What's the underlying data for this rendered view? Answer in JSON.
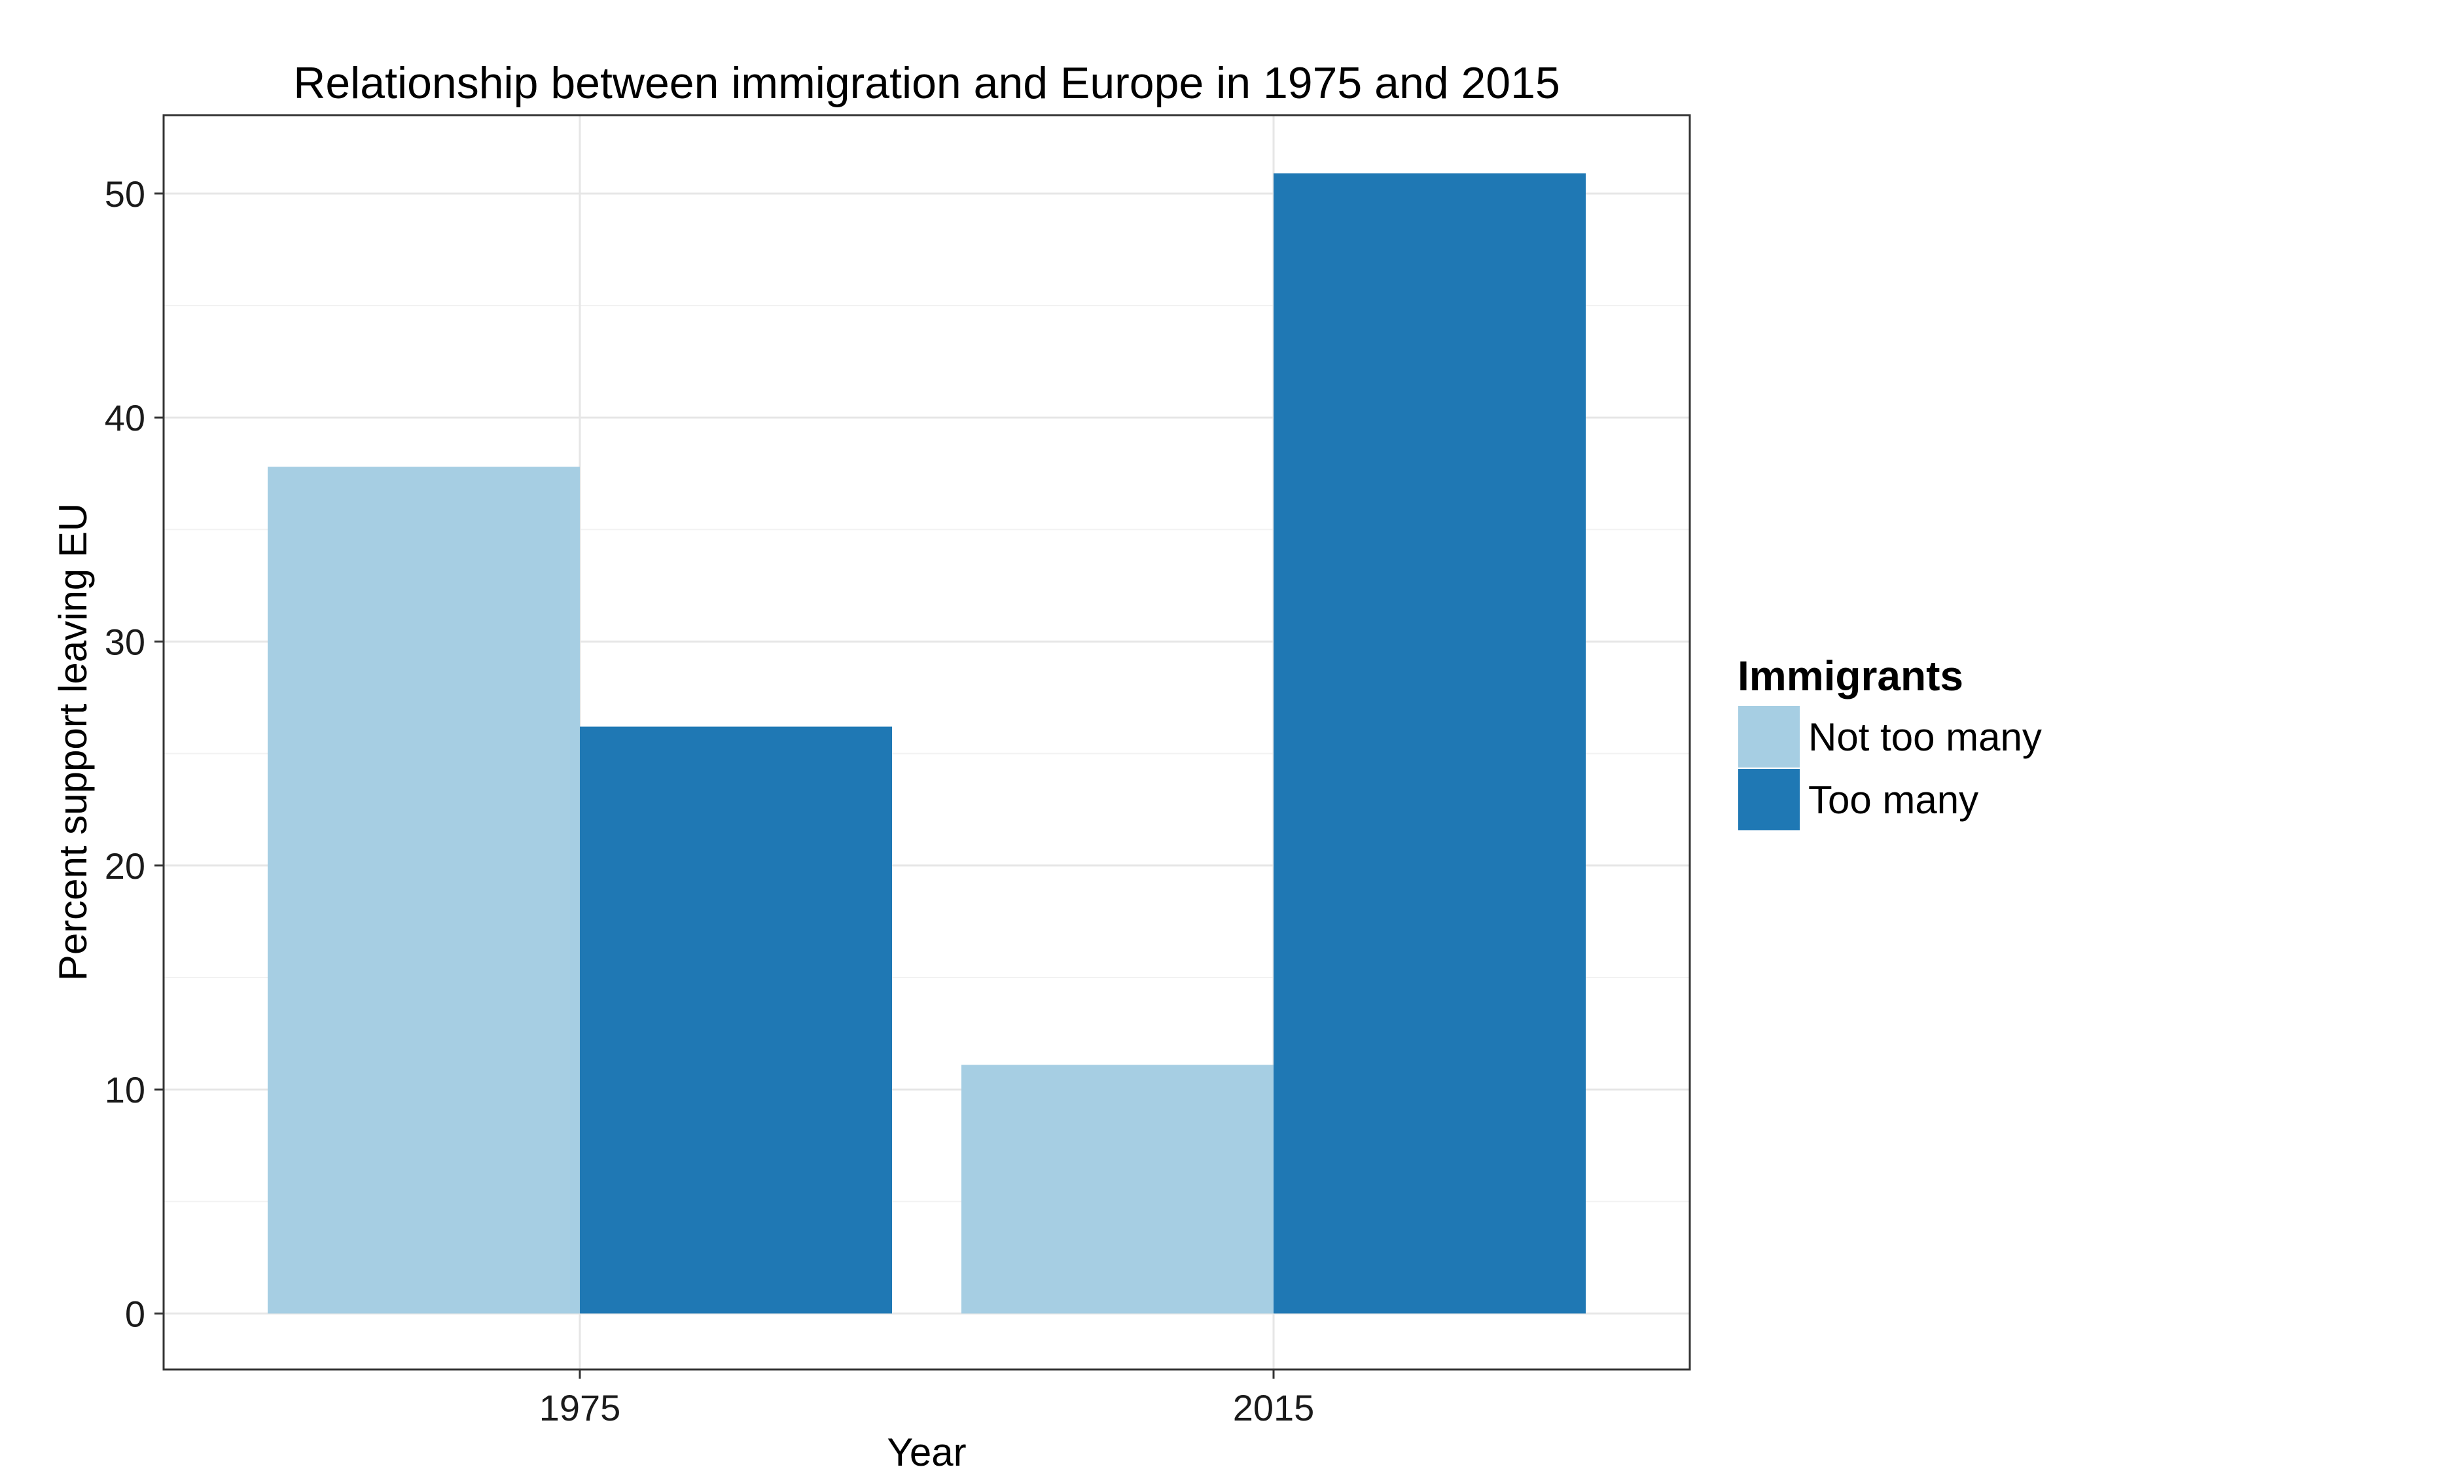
{
  "chart_data": {
    "type": "bar",
    "title": "Relationship between immigration and Europe in 1975 and 2015",
    "xlabel": "Year",
    "ylabel": "Percent support leaving EU",
    "categories": [
      "1975",
      "2015"
    ],
    "series": [
      {
        "name": "Not too many",
        "values": [
          37.8,
          11.1
        ],
        "color": "#a6cee3"
      },
      {
        "name": "Too many",
        "values": [
          26.2,
          50.9
        ],
        "color": "#1f78b4"
      }
    ],
    "ylim": [
      -2.5,
      53.5
    ],
    "yticks": [
      0,
      10,
      20,
      30,
      40,
      50
    ],
    "grid": true,
    "legend": {
      "title": "Immigrants",
      "position": "right"
    }
  }
}
